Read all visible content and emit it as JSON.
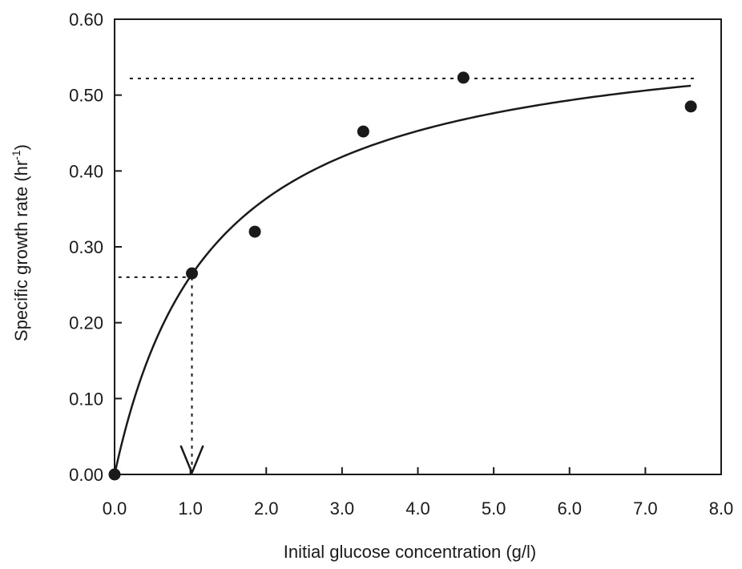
{
  "chart_data": {
    "type": "scatter",
    "title": "",
    "xlabel": "Initial glucose concentration (g/l)",
    "ylabel": {
      "text": "Specific growth rate (hr",
      "superscript": "-1",
      "close": ")"
    },
    "xlim": [
      0,
      8
    ],
    "ylim": [
      0,
      0.6
    ],
    "xticks": [
      "0.0",
      "1.0",
      "2.0",
      "3.0",
      "4.0",
      "5.0",
      "6.0",
      "7.0",
      "8.0"
    ],
    "yticks": [
      "0.00",
      "0.10",
      "0.20",
      "0.30",
      "0.40",
      "0.50",
      "0.60"
    ],
    "grid": false,
    "series": [
      {
        "kind": "points",
        "x": [
          0.0,
          1.02,
          1.85,
          3.28,
          4.6,
          7.6
        ],
        "y": [
          0.0,
          0.265,
          0.32,
          0.452,
          0.523,
          0.485
        ]
      },
      {
        "kind": "fitted-curve",
        "model": "monod",
        "mu_max": 0.6,
        "ks": 1.3,
        "x_end": 7.6
      }
    ],
    "annotations": {
      "mu_max_line_y": 0.522,
      "half_mu_y": 0.26,
      "ks_x": 1.02
    },
    "colors": {
      "ink": "#1a1a1a"
    }
  }
}
